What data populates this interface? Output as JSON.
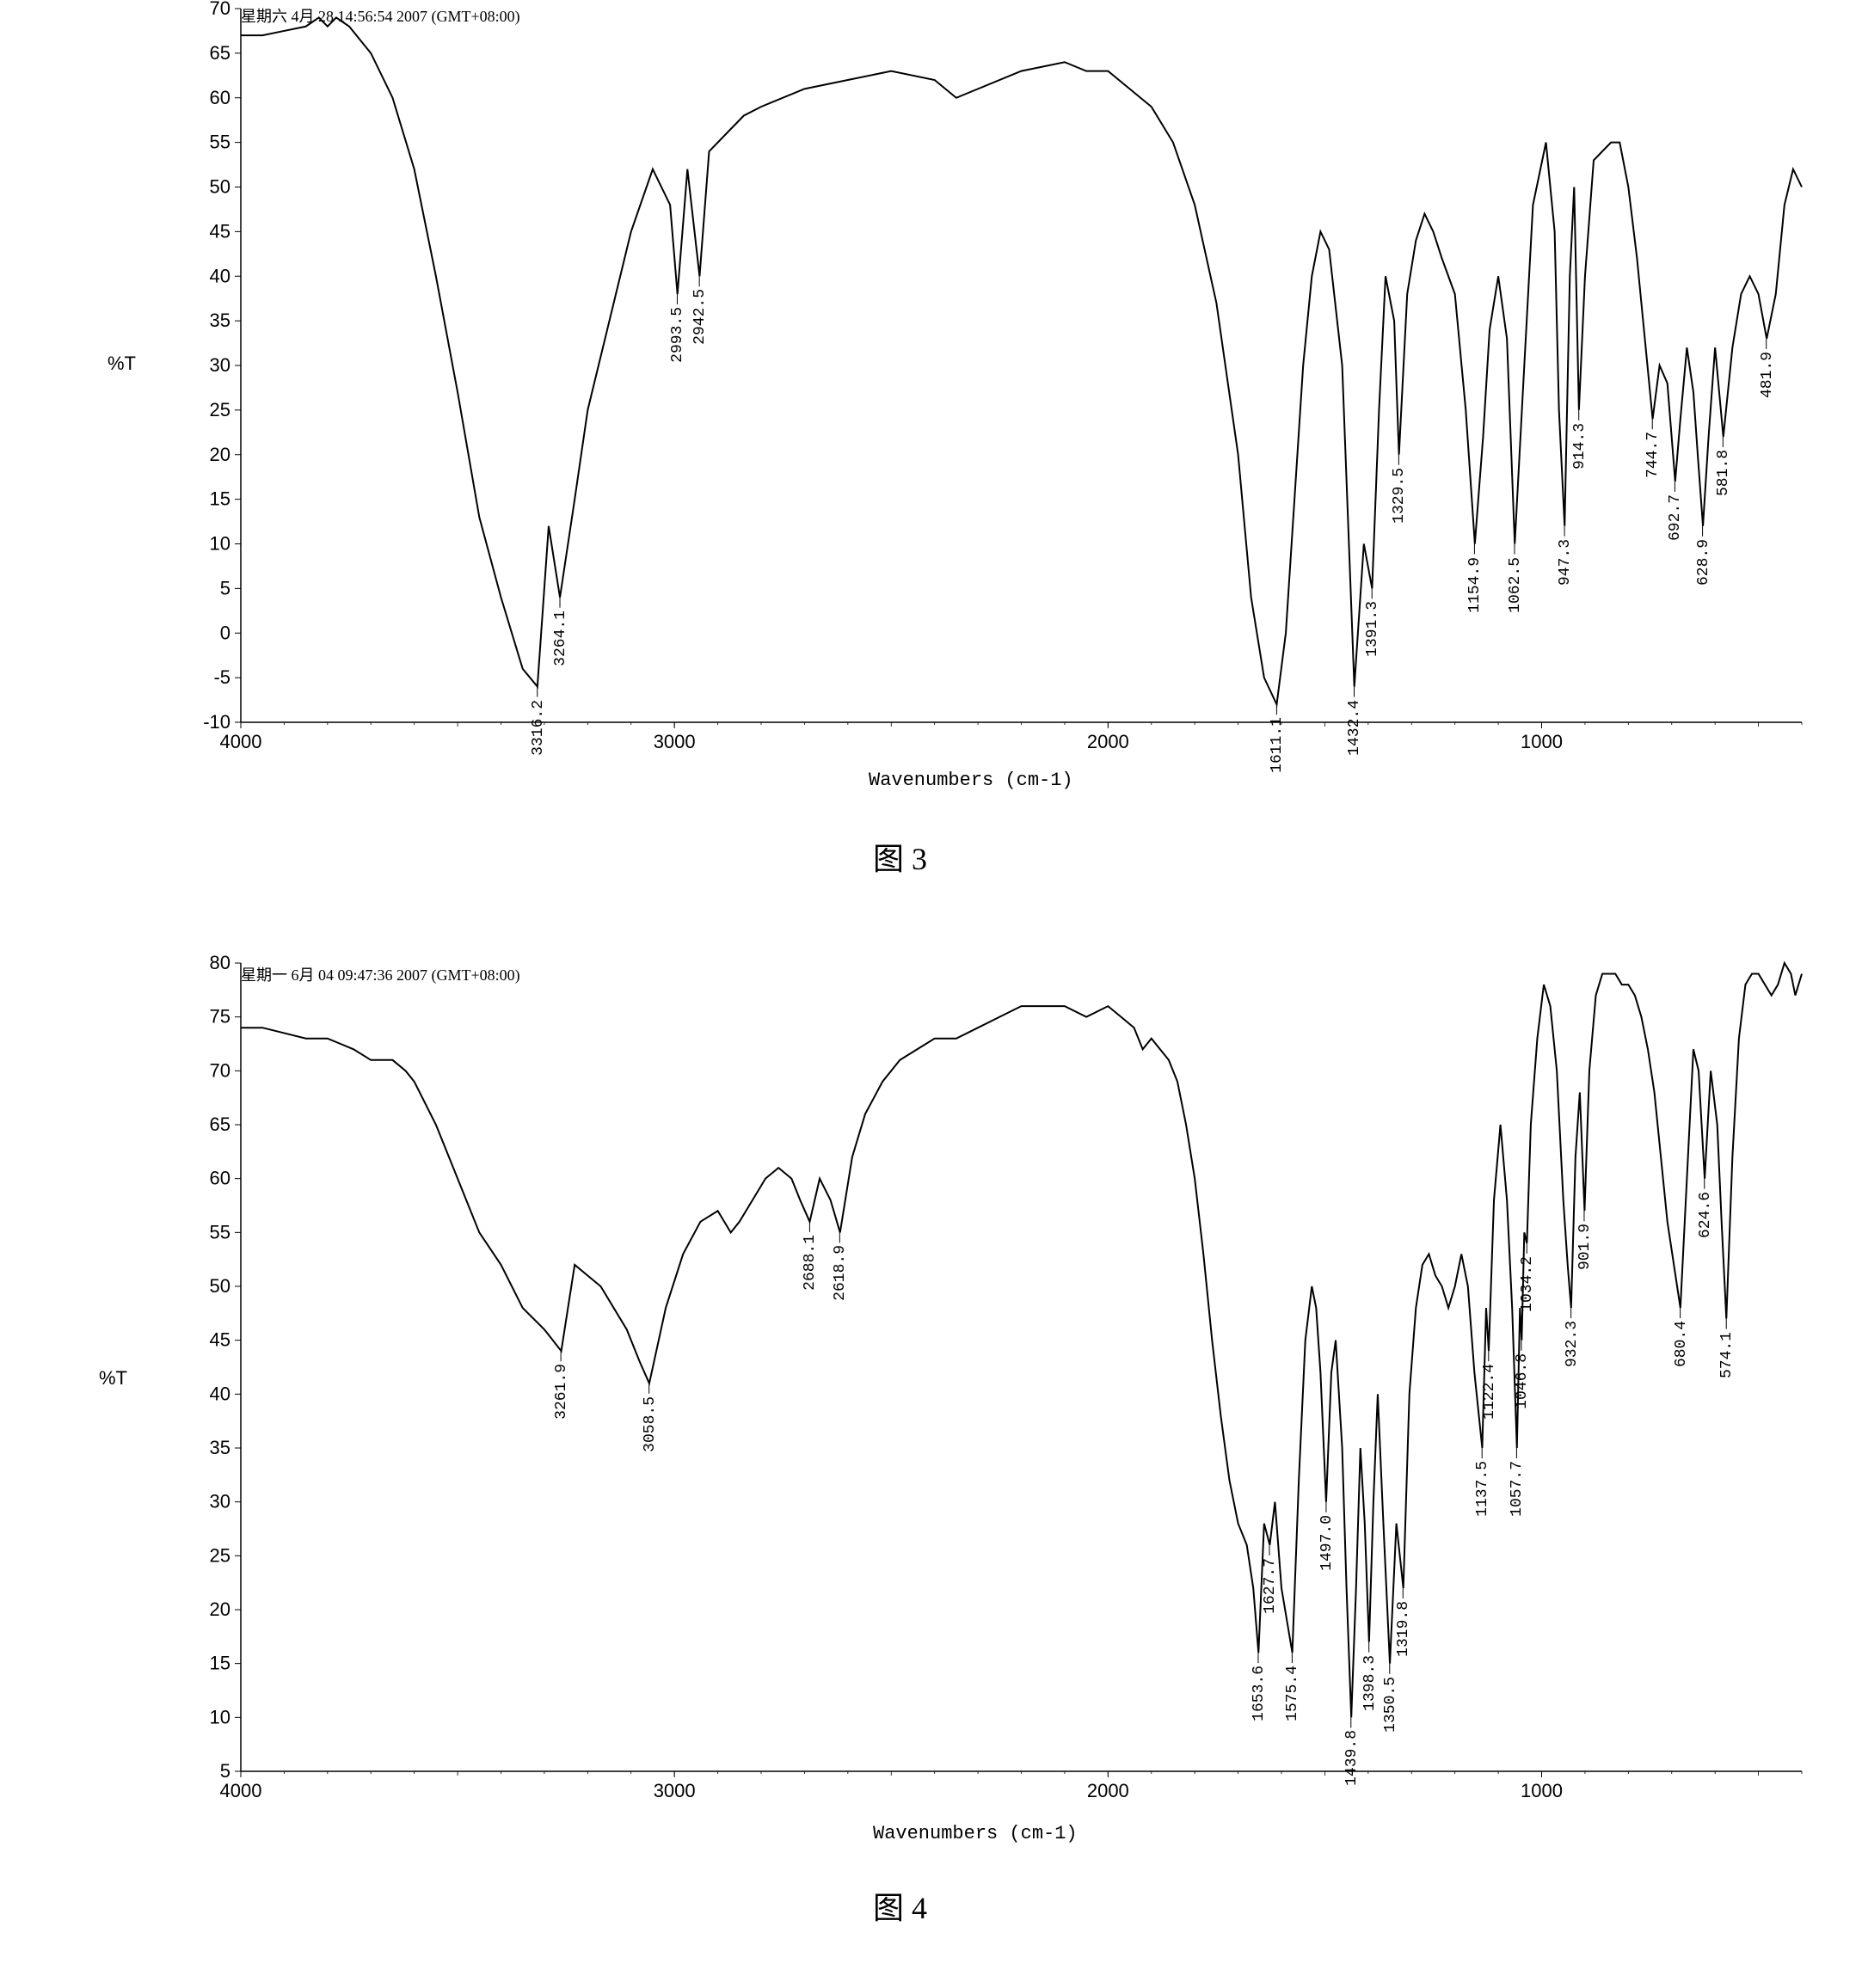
{
  "chart1": {
    "type": "line",
    "timestamp": "星期六 4月 28 14:56:54 2007 (GMT+08:00)",
    "ylabel": "%T",
    "xlabel": "Wavenumbers (cm-1)",
    "caption": "图 3",
    "xlim": [
      4000,
      400
    ],
    "ylim": [
      -10,
      70
    ],
    "xtick_step": 1000,
    "ytick_step": 5,
    "line_color": "#000000",
    "background_color": "#ffffff",
    "peaks": [
      {
        "wn": 3316.2,
        "t": -6
      },
      {
        "wn": 3264.1,
        "t": 4
      },
      {
        "wn": 2993.5,
        "t": 38
      },
      {
        "wn": 2942.5,
        "t": 40
      },
      {
        "wn": 1611.1,
        "t": -8
      },
      {
        "wn": 1432.4,
        "t": -6
      },
      {
        "wn": 1391.3,
        "t": 5
      },
      {
        "wn": 1329.5,
        "t": 20
      },
      {
        "wn": 1154.9,
        "t": 10
      },
      {
        "wn": 1062.5,
        "t": 10
      },
      {
        "wn": 947.3,
        "t": 12
      },
      {
        "wn": 914.3,
        "t": 25
      },
      {
        "wn": 744.7,
        "t": 24
      },
      {
        "wn": 692.7,
        "t": 17
      },
      {
        "wn": 628.9,
        "t": 12
      },
      {
        "wn": 581.8,
        "t": 22
      },
      {
        "wn": 481.9,
        "t": 33
      }
    ],
    "curve": [
      [
        4000,
        67
      ],
      [
        3950,
        67
      ],
      [
        3900,
        67.5
      ],
      [
        3850,
        68
      ],
      [
        3820,
        69
      ],
      [
        3800,
        68
      ],
      [
        3780,
        69
      ],
      [
        3750,
        68
      ],
      [
        3700,
        65
      ],
      [
        3650,
        60
      ],
      [
        3600,
        52
      ],
      [
        3550,
        40
      ],
      [
        3500,
        27
      ],
      [
        3450,
        13
      ],
      [
        3400,
        4
      ],
      [
        3350,
        -4
      ],
      [
        3316,
        -6
      ],
      [
        3290,
        12
      ],
      [
        3264,
        4
      ],
      [
        3230,
        15
      ],
      [
        3200,
        25
      ],
      [
        3150,
        35
      ],
      [
        3100,
        45
      ],
      [
        3050,
        52
      ],
      [
        3010,
        48
      ],
      [
        2993,
        38
      ],
      [
        2970,
        52
      ],
      [
        2942,
        40
      ],
      [
        2920,
        54
      ],
      [
        2880,
        56
      ],
      [
        2840,
        58
      ],
      [
        2800,
        59
      ],
      [
        2700,
        61
      ],
      [
        2600,
        62
      ],
      [
        2500,
        63
      ],
      [
        2400,
        62
      ],
      [
        2350,
        60
      ],
      [
        2300,
        61
      ],
      [
        2200,
        63
      ],
      [
        2100,
        64
      ],
      [
        2050,
        63
      ],
      [
        2000,
        63
      ],
      [
        1950,
        61
      ],
      [
        1900,
        59
      ],
      [
        1850,
        55
      ],
      [
        1800,
        48
      ],
      [
        1750,
        37
      ],
      [
        1700,
        20
      ],
      [
        1670,
        4
      ],
      [
        1640,
        -5
      ],
      [
        1611,
        -8
      ],
      [
        1590,
        0
      ],
      [
        1570,
        15
      ],
      [
        1550,
        30
      ],
      [
        1530,
        40
      ],
      [
        1510,
        45
      ],
      [
        1490,
        43
      ],
      [
        1460,
        30
      ],
      [
        1432,
        -6
      ],
      [
        1410,
        10
      ],
      [
        1391,
        5
      ],
      [
        1375,
        25
      ],
      [
        1360,
        40
      ],
      [
        1340,
        35
      ],
      [
        1329,
        20
      ],
      [
        1310,
        38
      ],
      [
        1290,
        44
      ],
      [
        1270,
        47
      ],
      [
        1250,
        45
      ],
      [
        1230,
        42
      ],
      [
        1200,
        38
      ],
      [
        1175,
        25
      ],
      [
        1154,
        10
      ],
      [
        1135,
        22
      ],
      [
        1120,
        34
      ],
      [
        1100,
        40
      ],
      [
        1080,
        33
      ],
      [
        1062,
        10
      ],
      [
        1040,
        30
      ],
      [
        1020,
        48
      ],
      [
        990,
        55
      ],
      [
        970,
        45
      ],
      [
        960,
        25
      ],
      [
        947,
        12
      ],
      [
        935,
        40
      ],
      [
        925,
        50
      ],
      [
        914,
        25
      ],
      [
        900,
        40
      ],
      [
        880,
        53
      ],
      [
        860,
        54
      ],
      [
        840,
        55
      ],
      [
        820,
        55
      ],
      [
        800,
        50
      ],
      [
        780,
        42
      ],
      [
        760,
        32
      ],
      [
        744,
        24
      ],
      [
        728,
        30
      ],
      [
        710,
        28
      ],
      [
        692,
        17
      ],
      [
        680,
        24
      ],
      [
        665,
        32
      ],
      [
        650,
        27
      ],
      [
        640,
        20
      ],
      [
        628,
        12
      ],
      [
        615,
        22
      ],
      [
        600,
        32
      ],
      [
        581,
        22
      ],
      [
        560,
        32
      ],
      [
        540,
        38
      ],
      [
        520,
        40
      ],
      [
        500,
        38
      ],
      [
        481,
        33
      ],
      [
        460,
        38
      ],
      [
        440,
        48
      ],
      [
        420,
        52
      ],
      [
        400,
        50
      ]
    ]
  },
  "chart2": {
    "type": "line",
    "timestamp": "星期一  6月  04 09:47:36 2007 (GMT+08:00)",
    "ylabel": "%T",
    "xlabel": "Wavenumbers (cm-1)",
    "caption": "图 4",
    "xlim": [
      4000,
      400
    ],
    "ylim": [
      5,
      80
    ],
    "xtick_step": 1000,
    "ytick_step": 5,
    "line_color": "#000000",
    "background_color": "#ffffff",
    "peaks": [
      {
        "wn": 3261.9,
        "t": 44
      },
      {
        "wn": 3058.5,
        "t": 41
      },
      {
        "wn": 2688.1,
        "t": 56
      },
      {
        "wn": 2618.9,
        "t": 55
      },
      {
        "wn": 1653.6,
        "t": 16
      },
      {
        "wn": 1627.7,
        "t": 26
      },
      {
        "wn": 1575.4,
        "t": 16
      },
      {
        "wn": 1497.0,
        "t": 30
      },
      {
        "wn": 1439.8,
        "t": 10
      },
      {
        "wn": 1398.3,
        "t": 17
      },
      {
        "wn": 1350.5,
        "t": 15
      },
      {
        "wn": 1319.8,
        "t": 22
      },
      {
        "wn": 1137.5,
        "t": 35
      },
      {
        "wn": 1122.4,
        "t": 44
      },
      {
        "wn": 1057.7,
        "t": 35
      },
      {
        "wn": 1046.8,
        "t": 45
      },
      {
        "wn": 1034.2,
        "t": 54
      },
      {
        "wn": 932.3,
        "t": 48
      },
      {
        "wn": 901.9,
        "t": 57
      },
      {
        "wn": 680.4,
        "t": 48
      },
      {
        "wn": 624.6,
        "t": 60
      },
      {
        "wn": 574.1,
        "t": 47
      }
    ],
    "curve": [
      [
        4000,
        74
      ],
      [
        3950,
        74
      ],
      [
        3900,
        73.5
      ],
      [
        3850,
        73
      ],
      [
        3800,
        73
      ],
      [
        3770,
        72.5
      ],
      [
        3740,
        72
      ],
      [
        3700,
        71
      ],
      [
        3650,
        71
      ],
      [
        3620,
        70
      ],
      [
        3600,
        69
      ],
      [
        3550,
        65
      ],
      [
        3500,
        60
      ],
      [
        3450,
        55
      ],
      [
        3400,
        52
      ],
      [
        3350,
        48
      ],
      [
        3300,
        46
      ],
      [
        3261,
        44
      ],
      [
        3230,
        52
      ],
      [
        3200,
        51
      ],
      [
        3170,
        50
      ],
      [
        3140,
        48
      ],
      [
        3110,
        46
      ],
      [
        3080,
        43
      ],
      [
        3058,
        41
      ],
      [
        3020,
        48
      ],
      [
        2980,
        53
      ],
      [
        2940,
        56
      ],
      [
        2900,
        57
      ],
      [
        2870,
        55
      ],
      [
        2850,
        56
      ],
      [
        2820,
        58
      ],
      [
        2790,
        60
      ],
      [
        2760,
        61
      ],
      [
        2730,
        60
      ],
      [
        2710,
        58
      ],
      [
        2688,
        56
      ],
      [
        2665,
        60
      ],
      [
        2640,
        58
      ],
      [
        2618,
        55
      ],
      [
        2590,
        62
      ],
      [
        2560,
        66
      ],
      [
        2520,
        69
      ],
      [
        2480,
        71
      ],
      [
        2440,
        72
      ],
      [
        2400,
        73
      ],
      [
        2350,
        73
      ],
      [
        2300,
        74
      ],
      [
        2250,
        75
      ],
      [
        2200,
        76
      ],
      [
        2150,
        76
      ],
      [
        2100,
        76
      ],
      [
        2050,
        75
      ],
      [
        2000,
        76
      ],
      [
        1970,
        75
      ],
      [
        1940,
        74
      ],
      [
        1920,
        72
      ],
      [
        1900,
        73
      ],
      [
        1880,
        72
      ],
      [
        1860,
        71
      ],
      [
        1840,
        69
      ],
      [
        1820,
        65
      ],
      [
        1800,
        60
      ],
      [
        1780,
        53
      ],
      [
        1760,
        45
      ],
      [
        1740,
        38
      ],
      [
        1720,
        32
      ],
      [
        1700,
        28
      ],
      [
        1680,
        26
      ],
      [
        1665,
        22
      ],
      [
        1653,
        16
      ],
      [
        1640,
        28
      ],
      [
        1627,
        26
      ],
      [
        1615,
        30
      ],
      [
        1600,
        22
      ],
      [
        1575,
        16
      ],
      [
        1560,
        32
      ],
      [
        1545,
        45
      ],
      [
        1530,
        50
      ],
      [
        1520,
        48
      ],
      [
        1510,
        42
      ],
      [
        1497,
        30
      ],
      [
        1485,
        42
      ],
      [
        1475,
        45
      ],
      [
        1460,
        35
      ],
      [
        1450,
        22
      ],
      [
        1439,
        10
      ],
      [
        1428,
        22
      ],
      [
        1418,
        35
      ],
      [
        1408,
        28
      ],
      [
        1398,
        17
      ],
      [
        1388,
        30
      ],
      [
        1378,
        40
      ],
      [
        1365,
        28
      ],
      [
        1350,
        15
      ],
      [
        1335,
        28
      ],
      [
        1319,
        22
      ],
      [
        1305,
        40
      ],
      [
        1290,
        48
      ],
      [
        1275,
        52
      ],
      [
        1260,
        53
      ],
      [
        1245,
        51
      ],
      [
        1230,
        50
      ],
      [
        1215,
        48
      ],
      [
        1200,
        50
      ],
      [
        1185,
        53
      ],
      [
        1170,
        50
      ],
      [
        1155,
        42
      ],
      [
        1137,
        35
      ],
      [
        1128,
        48
      ],
      [
        1122,
        44
      ],
      [
        1110,
        58
      ],
      [
        1095,
        65
      ],
      [
        1080,
        58
      ],
      [
        1068,
        48
      ],
      [
        1057,
        35
      ],
      [
        1050,
        48
      ],
      [
        1046,
        45
      ],
      [
        1040,
        55
      ],
      [
        1034,
        54
      ],
      [
        1025,
        65
      ],
      [
        1010,
        73
      ],
      [
        995,
        78
      ],
      [
        980,
        76
      ],
      [
        965,
        70
      ],
      [
        950,
        58
      ],
      [
        940,
        52
      ],
      [
        932,
        48
      ],
      [
        922,
        62
      ],
      [
        912,
        68
      ],
      [
        901,
        57
      ],
      [
        890,
        70
      ],
      [
        875,
        77
      ],
      [
        860,
        79
      ],
      [
        845,
        79
      ],
      [
        830,
        79
      ],
      [
        815,
        78
      ],
      [
        800,
        78
      ],
      [
        785,
        77
      ],
      [
        770,
        75
      ],
      [
        755,
        72
      ],
      [
        740,
        68
      ],
      [
        725,
        62
      ],
      [
        710,
        56
      ],
      [
        695,
        52
      ],
      [
        680,
        48
      ],
      [
        665,
        60
      ],
      [
        650,
        72
      ],
      [
        638,
        70
      ],
      [
        624,
        60
      ],
      [
        610,
        70
      ],
      [
        595,
        65
      ],
      [
        585,
        56
      ],
      [
        574,
        47
      ],
      [
        560,
        62
      ],
      [
        545,
        73
      ],
      [
        530,
        78
      ],
      [
        515,
        79
      ],
      [
        500,
        79
      ],
      [
        485,
        78
      ],
      [
        470,
        77
      ],
      [
        455,
        78
      ],
      [
        440,
        80
      ],
      [
        425,
        79
      ],
      [
        415,
        77
      ],
      [
        400,
        79
      ]
    ]
  }
}
